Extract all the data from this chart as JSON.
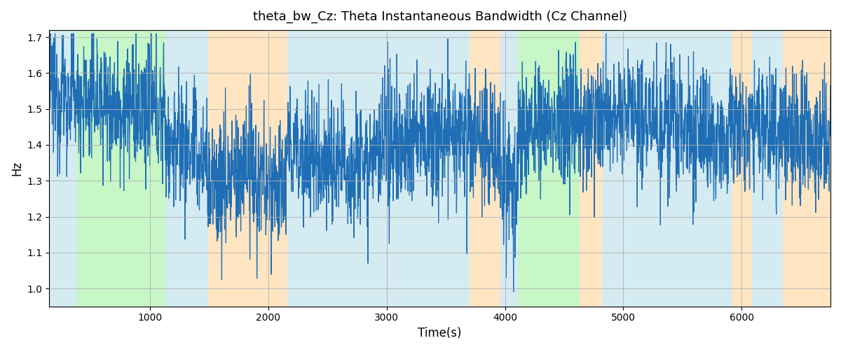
{
  "title": "theta_bw_Cz: Theta Instantaneous Bandwidth (Cz Channel)",
  "xlabel": "Time(s)",
  "ylabel": "Hz",
  "xlim": [
    150,
    6750
  ],
  "ylim": [
    0.95,
    1.72
  ],
  "yticks": [
    1.0,
    1.1,
    1.2,
    1.3,
    1.4,
    1.5,
    1.6,
    1.7
  ],
  "xticks": [
    1000,
    2000,
    3000,
    4000,
    5000,
    6000
  ],
  "line_color": "#1f6eb5",
  "line_width": 0.9,
  "bg_color": "#ffffff",
  "grid_color": "#b0b0b0",
  "regions": [
    {
      "start": 150,
      "end": 380,
      "color": "#add8e6",
      "alpha": 0.5
    },
    {
      "start": 380,
      "end": 1130,
      "color": "#90ee90",
      "alpha": 0.5
    },
    {
      "start": 1130,
      "end": 1490,
      "color": "#add8e6",
      "alpha": 0.5
    },
    {
      "start": 1490,
      "end": 2160,
      "color": "#ffd59a",
      "alpha": 0.6
    },
    {
      "start": 2160,
      "end": 3700,
      "color": "#add8e6",
      "alpha": 0.5
    },
    {
      "start": 3700,
      "end": 3960,
      "color": "#ffd59a",
      "alpha": 0.6
    },
    {
      "start": 3960,
      "end": 4110,
      "color": "#add8e6",
      "alpha": 0.5
    },
    {
      "start": 4110,
      "end": 4630,
      "color": "#90ee90",
      "alpha": 0.5
    },
    {
      "start": 4630,
      "end": 4820,
      "color": "#ffd59a",
      "alpha": 0.6
    },
    {
      "start": 4820,
      "end": 5920,
      "color": "#add8e6",
      "alpha": 0.5
    },
    {
      "start": 5920,
      "end": 6080,
      "color": "#ffd59a",
      "alpha": 0.6
    },
    {
      "start": 6080,
      "end": 6350,
      "color": "#add8e6",
      "alpha": 0.5
    },
    {
      "start": 6350,
      "end": 6750,
      "color": "#ffd59a",
      "alpha": 0.6
    }
  ],
  "seed": 12345,
  "n_points": 3000
}
